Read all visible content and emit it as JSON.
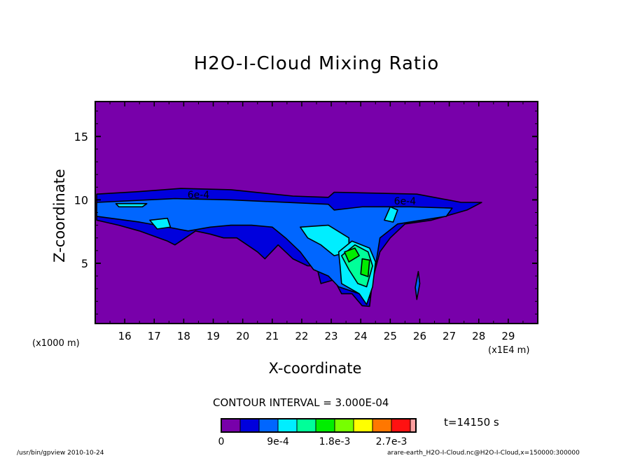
{
  "chart_data": {
    "type": "contour",
    "title": "H2O-I-Cloud Mixing Ratio",
    "xlabel": "X-coordinate",
    "ylabel": "Z-coordinate",
    "x_unit_left": "(x1000 m)",
    "x_unit_right": "(x1E4 m)",
    "xlim": [
      15,
      30
    ],
    "ylim": [
      0.25,
      17.75
    ],
    "xticks": [
      "16",
      "17",
      "18",
      "19",
      "20",
      "21",
      "22",
      "23",
      "24",
      "25",
      "26",
      "27",
      "28",
      "29"
    ],
    "yticks": [
      "5",
      "10",
      "15"
    ],
    "contour_interval": "CONTOUR INTERVAL = 3.000E-04",
    "time_label": "t=14150 s",
    "colorbar": {
      "colors": [
        "#7800aa",
        "#0000dd",
        "#0066ff",
        "#00eeff",
        "#00ff99",
        "#00ee00",
        "#77ff00",
        "#ffff00",
        "#ff7700",
        "#ff1111",
        "#ffa0a0"
      ],
      "tick_labels": [
        "0",
        "9e-4",
        "1.8e-3",
        "2.7e-3"
      ],
      "tick_levels": [
        0,
        3,
        6,
        9
      ]
    },
    "contour_labels": [
      {
        "text": "6e-4",
        "x": 18.5,
        "z": 10.4
      },
      {
        "text": "6e-4",
        "x": 25.5,
        "z": 9.9
      }
    ],
    "regions": [
      {
        "level": 1,
        "points": [
          [
            15.05,
            10.45
          ],
          [
            16.5,
            10.65
          ],
          [
            17.9,
            10.9
          ],
          [
            19.6,
            10.8
          ],
          [
            21.7,
            10.3
          ],
          [
            22.9,
            10.2
          ],
          [
            23.1,
            10.6
          ],
          [
            25.9,
            10.45
          ],
          [
            27.4,
            9.8
          ],
          [
            28.1,
            9.8
          ],
          [
            27.6,
            9.2
          ],
          [
            26.4,
            8.4
          ],
          [
            25.5,
            8.1
          ],
          [
            25.0,
            7.0
          ],
          [
            24.65,
            5.9
          ],
          [
            24.4,
            3.7
          ],
          [
            24.3,
            1.6
          ],
          [
            24.05,
            1.65
          ],
          [
            23.7,
            2.6
          ],
          [
            23.35,
            2.6
          ],
          [
            23.1,
            3.7
          ],
          [
            22.65,
            3.4
          ],
          [
            22.5,
            4.8
          ],
          [
            22.2,
            4.8
          ],
          [
            21.7,
            5.35
          ],
          [
            21.2,
            6.45
          ],
          [
            20.75,
            5.35
          ],
          [
            20.5,
            5.9
          ],
          [
            20.15,
            6.45
          ],
          [
            19.8,
            7.0
          ],
          [
            19.35,
            7.0
          ],
          [
            18.9,
            7.3
          ],
          [
            18.4,
            7.55
          ],
          [
            17.7,
            6.45
          ],
          [
            17.45,
            6.75
          ],
          [
            16.5,
            7.55
          ],
          [
            15.8,
            8.0
          ],
          [
            15.05,
            8.4
          ]
        ]
      },
      {
        "level": 2,
        "points": [
          [
            15.05,
            9.8
          ],
          [
            17.7,
            10.1
          ],
          [
            19.6,
            10.0
          ],
          [
            22.9,
            9.65
          ],
          [
            23.1,
            9.2
          ],
          [
            24.05,
            9.45
          ],
          [
            25.7,
            9.45
          ],
          [
            27.1,
            9.35
          ],
          [
            26.9,
            8.7
          ],
          [
            25.25,
            8.1
          ],
          [
            24.65,
            7.0
          ],
          [
            24.5,
            4.8
          ],
          [
            24.3,
            2.3
          ],
          [
            23.95,
            2.6
          ],
          [
            23.25,
            3.15
          ],
          [
            22.9,
            4.0
          ],
          [
            22.4,
            4.5
          ],
          [
            21.95,
            5.9
          ],
          [
            21.45,
            7.0
          ],
          [
            21.0,
            7.85
          ],
          [
            20.3,
            8.0
          ],
          [
            19.6,
            8.0
          ],
          [
            18.9,
            7.85
          ],
          [
            18.15,
            7.55
          ],
          [
            17.45,
            7.85
          ],
          [
            16.5,
            8.25
          ],
          [
            15.05,
            8.7
          ]
        ]
      },
      {
        "level": 3,
        "points": [
          [
            21.95,
            7.85
          ],
          [
            22.9,
            8.0
          ],
          [
            23.6,
            7.0
          ],
          [
            23.6,
            5.9
          ],
          [
            23.1,
            5.6
          ],
          [
            22.65,
            6.45
          ],
          [
            22.2,
            7.0
          ]
        ]
      },
      {
        "level": 3,
        "points": [
          [
            16.85,
            8.4
          ],
          [
            17.45,
            8.55
          ],
          [
            17.55,
            7.85
          ],
          [
            17.1,
            7.7
          ]
        ]
      },
      {
        "level": 3,
        "points": [
          [
            15.7,
            9.7
          ],
          [
            16.75,
            9.7
          ],
          [
            16.6,
            9.45
          ],
          [
            15.8,
            9.45
          ]
        ]
      },
      {
        "level": 3,
        "points": [
          [
            25.0,
            9.45
          ],
          [
            25.25,
            9.2
          ],
          [
            25.1,
            8.25
          ],
          [
            24.8,
            8.4
          ]
        ]
      },
      {
        "level": 3,
        "points": [
          [
            23.25,
            5.9
          ],
          [
            23.7,
            6.75
          ],
          [
            24.3,
            6.2
          ],
          [
            24.5,
            5.1
          ],
          [
            24.4,
            3.15
          ],
          [
            24.2,
            1.75
          ],
          [
            23.95,
            2.6
          ],
          [
            23.35,
            3.4
          ],
          [
            23.3,
            4.8
          ]
        ]
      },
      {
        "level": 4,
        "points": [
          [
            23.35,
            5.6
          ],
          [
            23.8,
            6.45
          ],
          [
            24.25,
            5.9
          ],
          [
            24.4,
            4.8
          ],
          [
            24.2,
            3.15
          ],
          [
            23.9,
            3.4
          ],
          [
            23.6,
            4.5
          ]
        ]
      },
      {
        "level": 5,
        "points": [
          [
            23.45,
            5.9
          ],
          [
            23.8,
            6.2
          ],
          [
            23.95,
            5.6
          ],
          [
            23.6,
            5.1
          ]
        ]
      },
      {
        "level": 5,
        "points": [
          [
            24.05,
            5.35
          ],
          [
            24.3,
            5.25
          ],
          [
            24.25,
            3.95
          ],
          [
            24.0,
            4.15
          ]
        ]
      },
      {
        "level": 2,
        "points": [
          [
            25.95,
            4.35
          ],
          [
            26.0,
            3.4
          ],
          [
            25.9,
            2.15
          ],
          [
            25.85,
            3.1
          ]
        ]
      }
    ]
  },
  "footer": {
    "left": "/usr/bin/gpview   2010-10-24",
    "right": "arare-earth_H2O-I-Cloud.nc@H2O-I-Cloud,x=150000:300000"
  }
}
